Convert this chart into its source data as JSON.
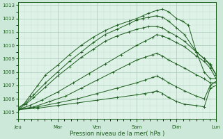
{
  "xlabel": "Pression niveau de la mer( hPa )",
  "bg_color": "#cce8d8",
  "plot_bg_color": "#dff2e8",
  "grid_major_color": "#a8c8b8",
  "grid_minor_color": "#c4e0d0",
  "line_color": "#1a5c1a",
  "ylim": [
    1004.5,
    1013.2
  ],
  "yticks": [
    1005,
    1006,
    1007,
    1008,
    1009,
    1010,
    1011,
    1012,
    1013
  ],
  "day_labels": [
    "Jeu",
    "Mar",
    "Ven",
    "Sam",
    "Dim",
    "Lun"
  ],
  "day_positions": [
    0,
    1,
    2,
    3,
    4,
    5
  ],
  "xlim": [
    0,
    5
  ],
  "lines": [
    {
      "x": [
        0.0,
        0.15,
        0.3,
        0.5,
        0.7,
        1.0,
        1.3,
        1.6,
        1.9,
        2.2,
        2.5,
        2.8,
        3.0,
        3.15,
        3.3,
        3.5,
        3.65,
        3.8,
        4.0,
        4.15,
        4.3,
        4.5,
        4.7,
        4.85,
        5.0
      ],
      "y": [
        1005.3,
        1005.6,
        1006.2,
        1007.0,
        1007.8,
        1008.5,
        1009.3,
        1010.0,
        1010.6,
        1011.1,
        1011.5,
        1011.8,
        1012.0,
        1012.2,
        1012.4,
        1012.6,
        1012.7,
        1012.5,
        1012.0,
        1011.8,
        1011.5,
        1009.5,
        1008.0,
        1007.5,
        1007.5
      ]
    },
    {
      "x": [
        0.0,
        0.2,
        0.4,
        0.7,
        1.0,
        1.3,
        1.6,
        1.9,
        2.2,
        2.5,
        2.8,
        3.0,
        3.15,
        3.3,
        3.5,
        3.65,
        3.8,
        4.0,
        4.2,
        4.5,
        4.7,
        4.85,
        5.0
      ],
      "y": [
        1005.3,
        1005.7,
        1006.3,
        1007.2,
        1008.0,
        1008.8,
        1009.5,
        1010.2,
        1010.8,
        1011.2,
        1011.6,
        1011.9,
        1012.0,
        1012.1,
        1012.2,
        1012.1,
        1011.8,
        1011.3,
        1010.8,
        1009.5,
        1009.0,
        1008.5,
        1007.8
      ]
    },
    {
      "x": [
        0.0,
        0.2,
        0.4,
        0.7,
        1.0,
        1.3,
        1.6,
        1.9,
        2.2,
        2.5,
        2.8,
        3.0,
        3.15,
        3.3,
        3.5,
        3.65,
        3.8,
        4.0,
        4.2,
        4.5,
        4.7,
        4.85,
        5.0
      ],
      "y": [
        1005.2,
        1005.6,
        1006.1,
        1006.9,
        1007.7,
        1008.4,
        1009.1,
        1009.7,
        1010.3,
        1010.7,
        1011.0,
        1011.2,
        1011.3,
        1011.4,
        1011.4,
        1011.3,
        1011.0,
        1010.7,
        1010.3,
        1009.5,
        1009.0,
        1008.6,
        1007.8
      ]
    },
    {
      "x": [
        0.0,
        0.3,
        0.6,
        1.0,
        1.4,
        1.8,
        2.2,
        2.6,
        3.0,
        3.2,
        3.4,
        3.5,
        3.65,
        3.8,
        4.0,
        4.2,
        4.5,
        4.7,
        4.85,
        5.0
      ],
      "y": [
        1005.2,
        1005.5,
        1005.9,
        1006.5,
        1007.2,
        1007.9,
        1008.6,
        1009.3,
        1010.0,
        1010.3,
        1010.6,
        1010.8,
        1010.7,
        1010.5,
        1010.2,
        1009.9,
        1009.2,
        1008.8,
        1008.3,
        1007.5
      ]
    },
    {
      "x": [
        0.0,
        0.4,
        0.8,
        1.2,
        1.6,
        2.0,
        2.4,
        2.8,
        3.0,
        3.2,
        3.4,
        3.5,
        3.65,
        3.8,
        4.0,
        4.2,
        4.5,
        4.7,
        4.85,
        5.0
      ],
      "y": [
        1005.2,
        1005.4,
        1005.8,
        1006.2,
        1006.8,
        1007.4,
        1008.0,
        1008.6,
        1008.9,
        1009.1,
        1009.3,
        1009.4,
        1009.2,
        1008.9,
        1008.6,
        1008.3,
        1007.8,
        1007.5,
        1007.2,
        1007.2
      ]
    },
    {
      "x": [
        0.0,
        0.5,
        1.0,
        1.5,
        2.0,
        2.5,
        3.0,
        3.2,
        3.4,
        3.5,
        3.65,
        3.8,
        4.0,
        4.2,
        4.5,
        4.7,
        4.85,
        5.0
      ],
      "y": [
        1005.2,
        1005.4,
        1005.7,
        1006.0,
        1006.4,
        1006.8,
        1007.2,
        1007.4,
        1007.6,
        1007.7,
        1007.5,
        1007.2,
        1006.9,
        1006.6,
        1006.2,
        1006.0,
        1007.0,
        1007.3
      ]
    },
    {
      "x": [
        0.0,
        0.5,
        1.0,
        1.5,
        2.0,
        2.5,
        3.0,
        3.2,
        3.4,
        3.5,
        3.65,
        3.8,
        4.0,
        4.2,
        4.5,
        4.7,
        4.85,
        5.0
      ],
      "y": [
        1005.2,
        1005.3,
        1005.5,
        1005.7,
        1005.9,
        1006.1,
        1006.3,
        1006.4,
        1006.5,
        1006.6,
        1006.4,
        1006.1,
        1005.8,
        1005.6,
        1005.5,
        1005.4,
        1006.8,
        1007.0
      ]
    }
  ]
}
